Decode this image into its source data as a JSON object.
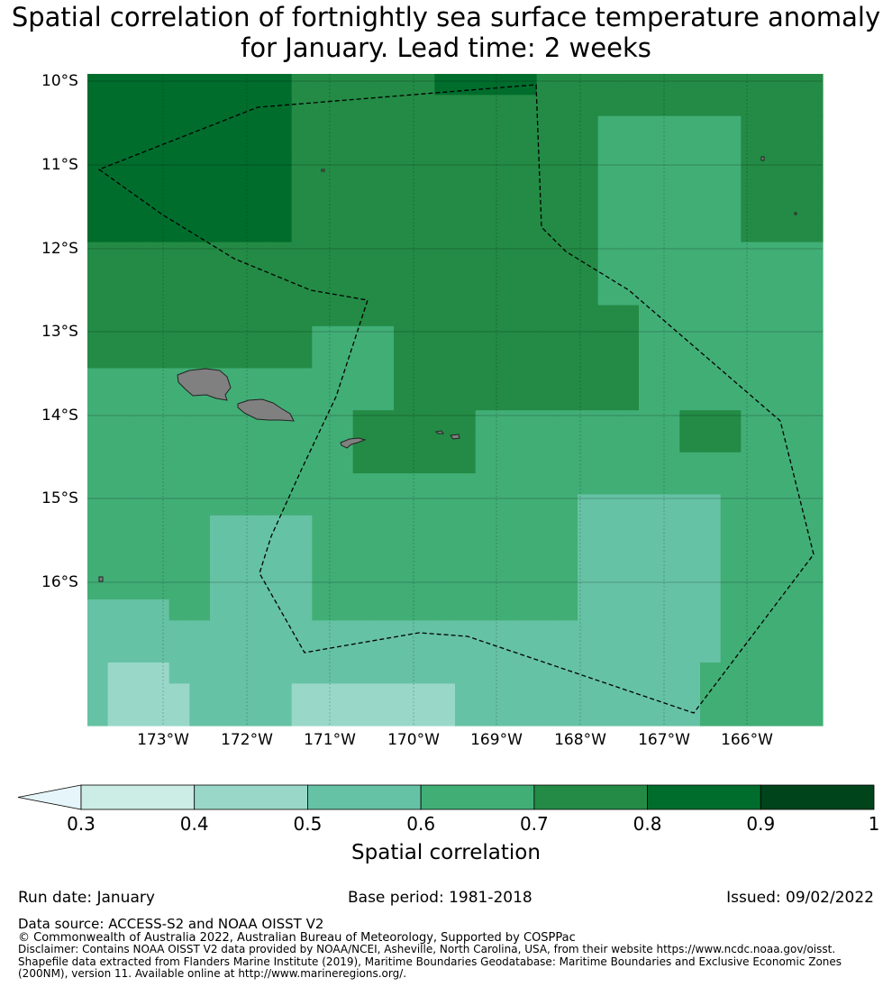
{
  "title": {
    "line1": "Spatial correlation of fortnightly sea surface temperature anomaly",
    "line2": "for January. Lead time: 2 weeks"
  },
  "map": {
    "lat_labels": [
      "10°S",
      "11°S",
      "12°S",
      "13°S",
      "14°S",
      "15°S",
      "16°S"
    ],
    "lon_labels": [
      "173°W",
      "172°W",
      "171°W",
      "170°W",
      "169°W",
      "168°W",
      "167°W",
      "166°W"
    ],
    "extent": {
      "lon": [
        -173.9,
        -165.1
      ],
      "lat": [
        -17.8,
        -10.1
      ]
    },
    "land_color": "#808080",
    "eez_style": "dashed black",
    "grid": true
  },
  "colorbar": {
    "ticks": [
      "0.3",
      "0.4",
      "0.5",
      "0.6",
      "0.7",
      "0.8",
      "0.9",
      "1"
    ],
    "colors": [
      "#ccece6",
      "#99d8c9",
      "#66c2a4",
      "#41ae76",
      "#238b45",
      "#006d2c",
      "#00441b"
    ],
    "under_color": "#e5f5f9",
    "label": "Spatial correlation"
  },
  "footer": {
    "run_date": "Run date: January",
    "base_period": "Base period: 1981-2018",
    "issued": "Issued: 09/02/2022",
    "data_source": "Data source: ACCESS-S2 and NOAA OISST V2",
    "copyright": "© Commonwealth of Australia 2022, Australian Bureau of Meteorology, Supported by COSPPac",
    "disclaimer": "Disclaimer: Contains NOAA OISST V2 data provided by NOAA/NCEI, Asheville, North Carolina, USA, from their website https://www.ncdc.noaa.gov/oisst. Shapefile data extracted from Flanders Marine Institute (2019), Maritime Boundaries Geodatabase: Maritime Boundaries and Exclusive Economic Zones (200NM), version 11. Available online at http://www.marineregions.org/."
  }
}
